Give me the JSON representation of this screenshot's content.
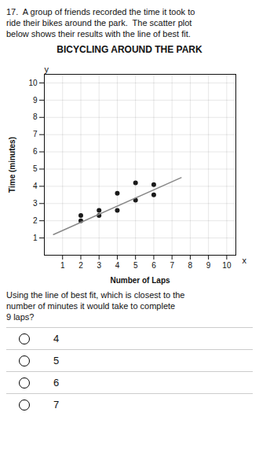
{
  "chart_data": {
    "type": "scatter",
    "title": "BICYCLING AROUND THE PARK",
    "xlabel": "Number of Laps",
    "ylabel": "Time (minutes)",
    "xlim": [
      0,
      10.5
    ],
    "ylim": [
      0,
      10.5
    ],
    "xticks": [
      1,
      2,
      3,
      4,
      5,
      6,
      7,
      8,
      9,
      10
    ],
    "yticks": [
      1,
      2,
      3,
      4,
      5,
      6,
      7,
      8,
      9,
      10
    ],
    "grid": true,
    "series": [
      {
        "type": "scatter",
        "color": "#1a1a1a",
        "marker": "circle",
        "x": [
          2,
          2,
          3,
          3,
          4,
          4,
          5,
          5,
          6,
          6
        ],
        "values": [
          2,
          2.3,
          2.3,
          2.6,
          2.6,
          3.6,
          4.2,
          3.2,
          4.1,
          3.5
        ]
      },
      {
        "type": "line",
        "color": "#888888",
        "line_style": "solid",
        "x": [
          0.5,
          7.5
        ],
        "values": [
          1.2,
          4.5
        ]
      }
    ],
    "annotations": [
      "y",
      "x"
    ],
    "question": "17.  A group of friends recorded the time it took to\nride their bikes around the park.  The scatter plot\nbelow shows their results with the line of best fit.",
    "question2": "Using the line of best fit, which is closest to the\nnumber of minutes it would take to complete\n9 laps?",
    "choices": [
      "4",
      "5",
      "6",
      "7"
    ]
  }
}
